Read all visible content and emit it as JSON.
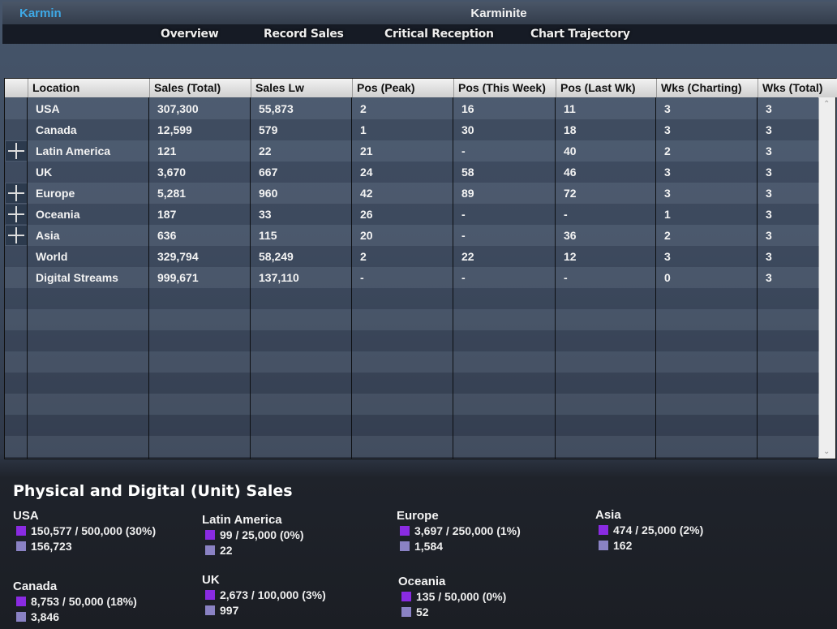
{
  "app": {
    "brand": "Karmin",
    "title": "Karminite"
  },
  "nav": [
    "Overview",
    "Record Sales",
    "Critical Reception",
    "Chart Trajectory"
  ],
  "table": {
    "columns": [
      "Location",
      "Sales (Total)",
      "Sales Lw",
      "Pos (Peak)",
      "Pos (This Week)",
      "Pos (Last Wk)",
      "Wks (Charting)",
      "Wks (Total)"
    ],
    "rows": [
      {
        "expandable": false,
        "cells": [
          "USA",
          "307,300",
          "55,873",
          "2",
          "16",
          "11",
          "3",
          "3"
        ]
      },
      {
        "expandable": false,
        "cells": [
          "Canada",
          "12,599",
          "579",
          "1",
          "30",
          "18",
          "3",
          "3"
        ]
      },
      {
        "expandable": true,
        "cells": [
          "Latin America",
          "121",
          "22",
          "21",
          "-",
          "40",
          "2",
          "3"
        ]
      },
      {
        "expandable": false,
        "cells": [
          "UK",
          "3,670",
          "667",
          "24",
          "58",
          "46",
          "3",
          "3"
        ]
      },
      {
        "expandable": true,
        "cells": [
          "Europe",
          "5,281",
          "960",
          "42",
          "89",
          "72",
          "3",
          "3"
        ]
      },
      {
        "expandable": true,
        "cells": [
          "Oceania",
          "187",
          "33",
          "26",
          "-",
          "-",
          "1",
          "3"
        ]
      },
      {
        "expandable": true,
        "cells": [
          "Asia",
          "636",
          "115",
          "20",
          "-",
          "36",
          "2",
          "3"
        ]
      },
      {
        "expandable": false,
        "cells": [
          "World",
          "329,794",
          "58,249",
          "2",
          "22",
          "12",
          "3",
          "3"
        ]
      },
      {
        "expandable": false,
        "cells": [
          "Digital Streams",
          "999,671",
          "137,110",
          "-",
          "-",
          "-",
          "0",
          "3"
        ]
      }
    ]
  },
  "sales": {
    "title": "Physical and Digital (Unit) Sales",
    "colors": {
      "physical": "#8a2be2",
      "digital": "#8a82c4"
    },
    "groups": [
      {
        "name": "USA",
        "physical": "150,577 / 500,000 (30%)",
        "digital": "156,723"
      },
      {
        "name": "Canada",
        "physical": "8,753 / 50,000 (18%)",
        "digital": "3,846"
      },
      {
        "name": "Latin America",
        "physical": "99 / 25,000 (0%)",
        "digital": "22"
      },
      {
        "name": "UK",
        "physical": "2,673 / 100,000 (3%)",
        "digital": "997"
      },
      {
        "name": "Europe",
        "physical": "3,697 / 250,000 (1%)",
        "digital": "1,584"
      },
      {
        "name": "Oceania",
        "physical": "135 / 50,000 (0%)",
        "digital": "52"
      },
      {
        "name": "Asia",
        "physical": "474 / 25,000 (2%)",
        "digital": "162"
      }
    ]
  }
}
